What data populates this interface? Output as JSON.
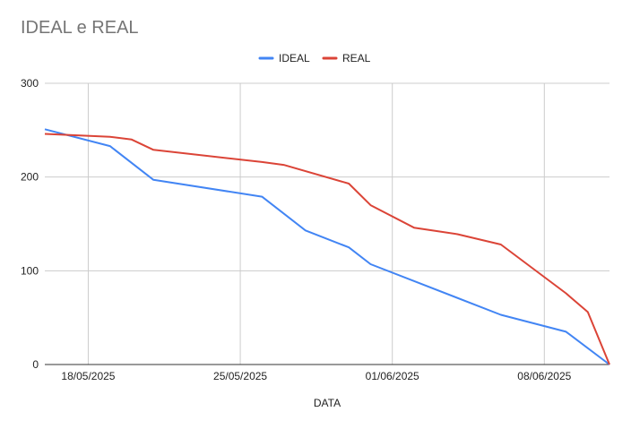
{
  "chart_data": {
    "type": "line",
    "title": "IDEAL e REAL",
    "xlabel": "DATA",
    "ylabel": "",
    "ylim": [
      0,
      300
    ],
    "yticks": [
      0,
      100,
      200,
      300
    ],
    "x_range_days": [
      0,
      26
    ],
    "xticks": [
      {
        "label": "18/05/2025",
        "day": 2
      },
      {
        "label": "25/05/2025",
        "day": 9
      },
      {
        "label": "01/06/2025",
        "day": 16
      },
      {
        "label": "08/06/2025",
        "day": 23
      }
    ],
    "legend": "top-center",
    "series": [
      {
        "name": "IDEAL",
        "color": "#4285f4",
        "points": [
          {
            "day": 0,
            "value": 251
          },
          {
            "day": 3,
            "value": 233
          },
          {
            "day": 5,
            "value": 197
          },
          {
            "day": 10,
            "value": 179
          },
          {
            "day": 12,
            "value": 143
          },
          {
            "day": 14,
            "value": 125
          },
          {
            "day": 15,
            "value": 107
          },
          {
            "day": 21,
            "value": 53
          },
          {
            "day": 24,
            "value": 35
          },
          {
            "day": 26,
            "value": 0
          }
        ]
      },
      {
        "name": "REAL",
        "color": "#db4437",
        "points": [
          {
            "day": 0,
            "value": 246
          },
          {
            "day": 3,
            "value": 243
          },
          {
            "day": 4,
            "value": 240
          },
          {
            "day": 5,
            "value": 229
          },
          {
            "day": 10,
            "value": 216
          },
          {
            "day": 11,
            "value": 213
          },
          {
            "day": 14,
            "value": 193
          },
          {
            "day": 15,
            "value": 170
          },
          {
            "day": 17,
            "value": 146
          },
          {
            "day": 19,
            "value": 139
          },
          {
            "day": 21,
            "value": 128
          },
          {
            "day": 24,
            "value": 76
          },
          {
            "day": 25,
            "value": 56
          },
          {
            "day": 26,
            "value": 0
          }
        ]
      }
    ]
  }
}
